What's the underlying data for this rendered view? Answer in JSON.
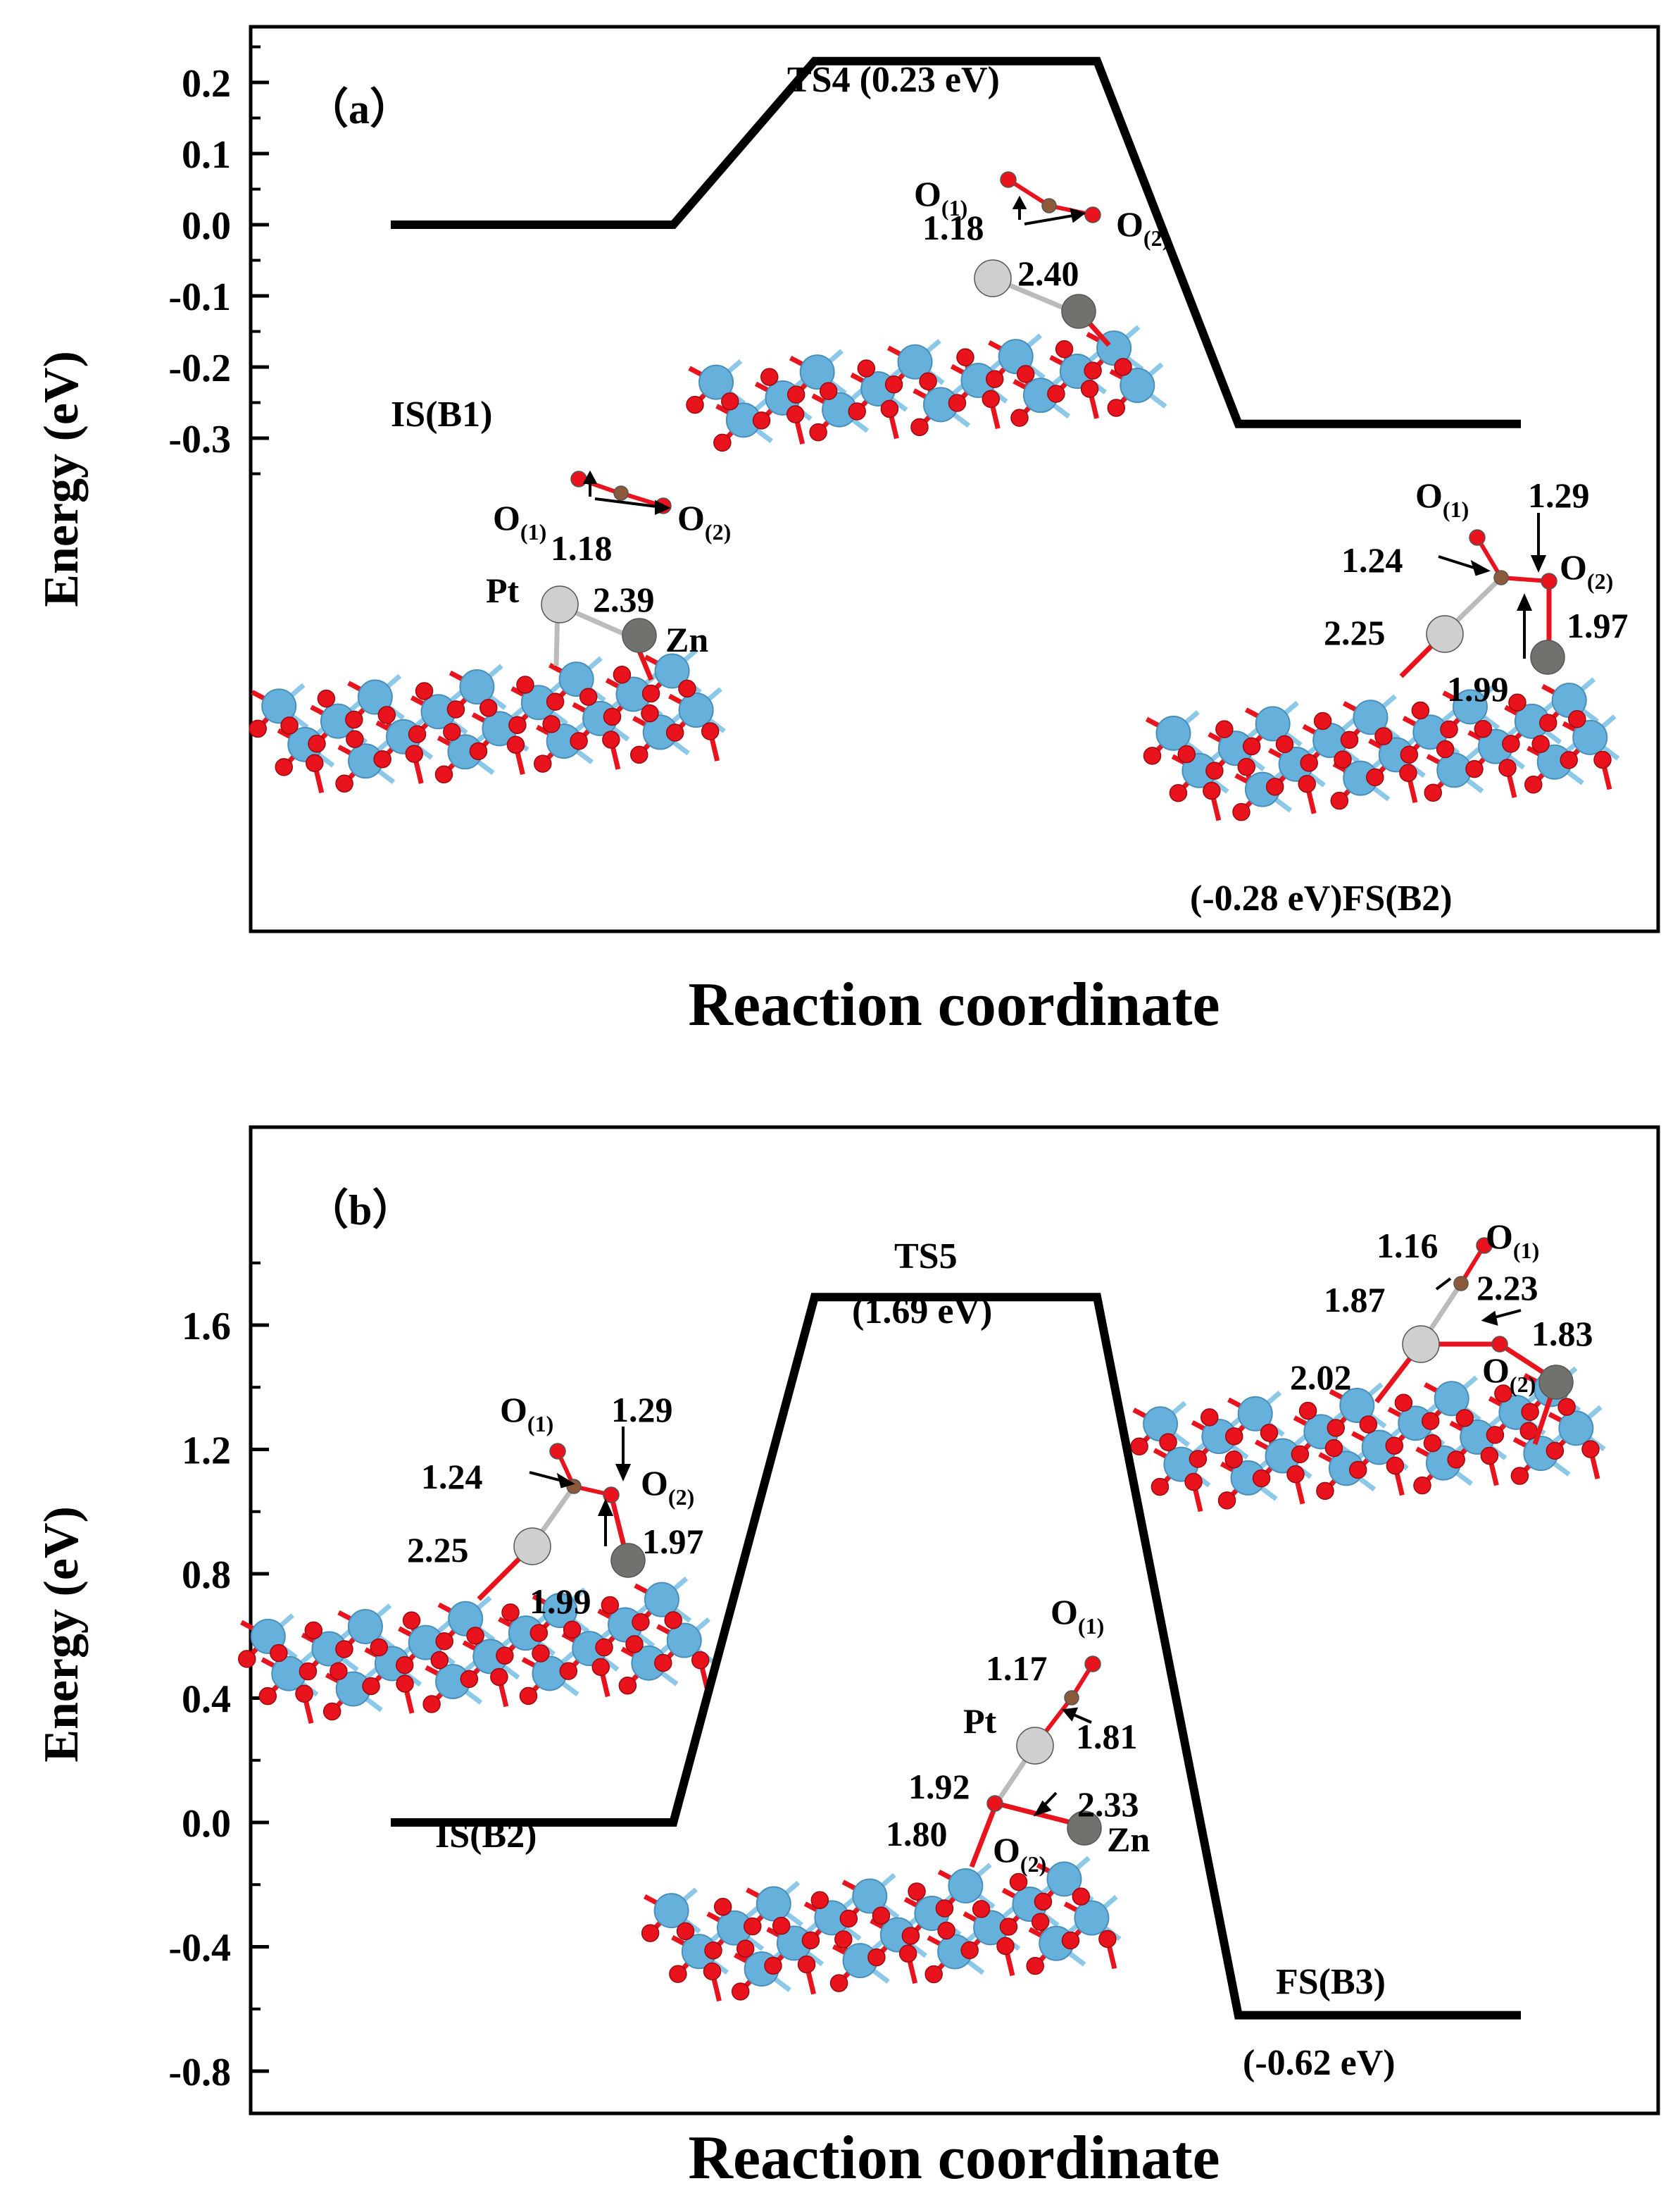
{
  "chart_data": [
    {
      "type": "line",
      "panel_label": "（a）",
      "xlabel": "Reaction coordinate",
      "ylabel": "Energy (eV)",
      "ylim": [
        -0.34,
        0.295
      ],
      "yticks": [
        -0.3,
        -0.2,
        -0.1,
        0.0,
        0.1,
        0.2
      ],
      "ytick_labels": [
        "-0.3",
        "-0.2",
        "-0.1",
        "0.0",
        "0.1",
        "0.2"
      ],
      "states": [
        {
          "label": "IS(B1)",
          "energy": 0.0,
          "start": 0.1,
          "end": 0.3
        },
        {
          "label": "TS4 (0.23 eV)",
          "energy": 0.23,
          "start": 0.4,
          "end": 0.6
        },
        {
          "label": "(-0.28 eV)FS(B2)",
          "energy": -0.28,
          "start": 0.7,
          "end": 0.9
        }
      ],
      "structure_labels": {
        "is": {
          "o1": "O",
          "o1_sub": "(1)",
          "o2": "O",
          "o2_sub": "(2)",
          "d1": "1.18",
          "pt": "Pt",
          "d2": "2.39",
          "zn": "Zn"
        },
        "ts": {
          "o1": "O",
          "o1_sub": "(1)",
          "o2": "O",
          "o2_sub": "(2)",
          "d1": "1.18",
          "d2": "2.40"
        },
        "fs": {
          "o1": "O",
          "o1_sub": "(1)",
          "d1": "1.29",
          "d2": "1.24",
          "o2": "O",
          "o2_sub": "(2)",
          "d3": "2.25",
          "d4": "1.97",
          "d5": "1.99"
        }
      }
    },
    {
      "type": "line",
      "panel_label": "（b）",
      "xlabel": "Reaction coordinate",
      "ylabel": "Energy (eV)",
      "ylim": [
        -0.84,
        1.9
      ],
      "yticks": [
        -0.8,
        -0.4,
        0.0,
        0.4,
        0.8,
        1.2,
        1.6
      ],
      "ytick_labels": [
        "-0.8",
        "-0.4",
        "0.0",
        "0.4",
        "0.8",
        "1.2",
        "1.6"
      ],
      "states": [
        {
          "label": "IS(B2)",
          "energy": 0.0,
          "start": 0.1,
          "end": 0.3
        },
        {
          "label_line1": "TS5",
          "label_line2": "(1.69 eV)",
          "energy": 1.69,
          "start": 0.4,
          "end": 0.6
        },
        {
          "label_line1": "FS(B3)",
          "label_line2": "(-0.62 eV)",
          "energy": -0.62,
          "start": 0.7,
          "end": 0.9
        }
      ],
      "structure_labels": {
        "is": {
          "o1": "O",
          "o1_sub": "(1)",
          "d1": "1.29",
          "d2": "1.24",
          "o2": "O",
          "o2_sub": "(2)",
          "d3": "2.25",
          "d4": "1.97",
          "d5": "1.99"
        },
        "ts": {
          "o1": "O",
          "o1_sub": "(1)",
          "d1": "1.17",
          "pt": "Pt",
          "d2": "1.81",
          "d3": "1.92",
          "d4": "2.33",
          "d5": "1.80",
          "o2": "O",
          "o2_sub": "(2)",
          "zn": "Zn"
        },
        "fs": {
          "d1": "1.16",
          "o1": "O",
          "o1_sub": "(1)",
          "d2": "1.87",
          "d3": "2.23",
          "d4": "1.83",
          "d5": "2.02",
          "o2": "O",
          "o2_sub": "(2)"
        }
      }
    }
  ],
  "colors": {
    "line": "#000000",
    "oxygen": "#e8131c",
    "carbon": "#8a5a3a",
    "platinum": "#cfcfcf",
    "zinc": "#6f726d",
    "titanium": "#66b0dc",
    "bond_ti": "#8cc8e8"
  }
}
